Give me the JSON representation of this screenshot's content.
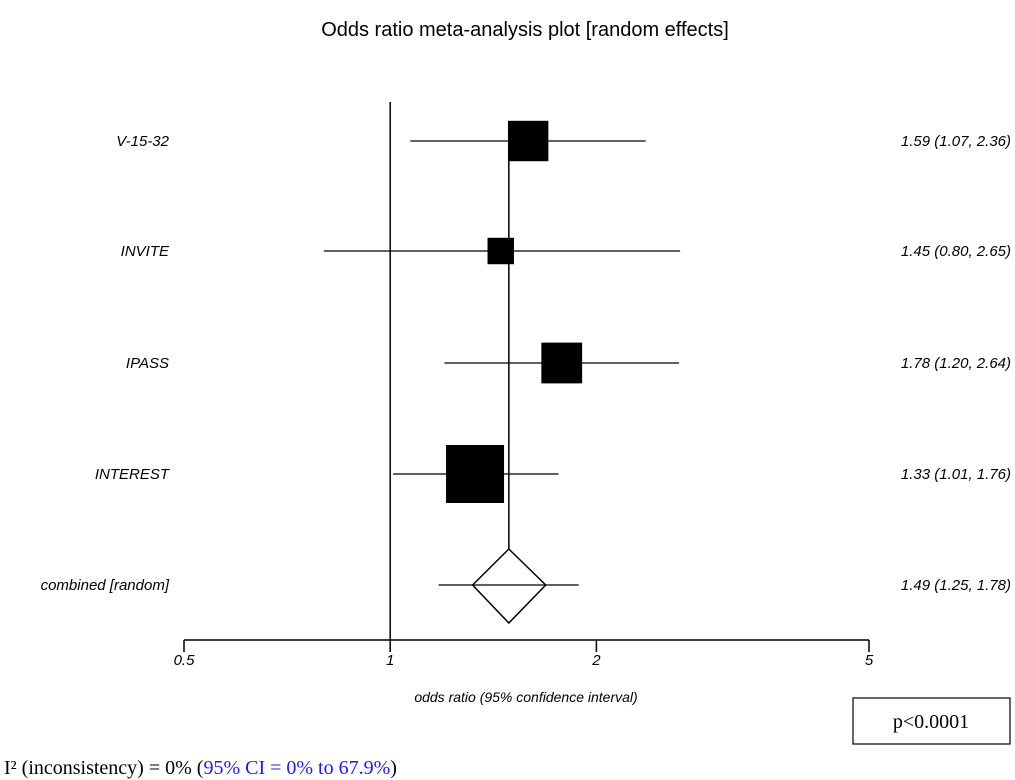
{
  "chart_data": {
    "type": "forest",
    "title": "Odds ratio meta-analysis plot [random effects]",
    "xlabel": "odds ratio (95% confidence interval)",
    "x_scale": "log",
    "xlim": [
      0.5,
      5
    ],
    "ticks": [
      {
        "value": 0.5,
        "label": "0.5"
      },
      {
        "value": 1,
        "label": "1"
      },
      {
        "value": 2,
        "label": "2"
      },
      {
        "value": 5,
        "label": "5"
      }
    ],
    "reference_line": 1,
    "studies": [
      {
        "name": "V-15-32",
        "or": 1.59,
        "lo": 1.07,
        "hi": 2.36,
        "ci_text": "1.59 (1.07, 2.36)",
        "weight": 0.36
      },
      {
        "name": "INVITE",
        "or": 1.45,
        "lo": 0.8,
        "hi": 2.65,
        "ci_text": "1.45 (0.80, 2.65)",
        "weight": 0.08
      },
      {
        "name": "IPASS",
        "or": 1.78,
        "lo": 1.2,
        "hi": 2.64,
        "ci_text": "1.78 (1.20, 2.64)",
        "weight": 0.37
      },
      {
        "name": "INTEREST",
        "or": 1.33,
        "lo": 1.01,
        "hi": 1.76,
        "ci_text": "1.33 (1.01, 1.76)",
        "weight": 1.0
      }
    ],
    "combined": {
      "name": "combined [random]",
      "or": 1.49,
      "lo": 1.25,
      "hi": 1.78,
      "ci_text": "1.49 (1.25, 1.78)"
    }
  },
  "p_value": "p<0.0001",
  "heterogeneity": {
    "prefix": "I² (inconsistency) = 0% (",
    "ci": "95% CI = 0% to 67.9%",
    "suffix": ")"
  },
  "colors": {
    "ink": "#000000",
    "ci_link": "#1a1aff"
  }
}
